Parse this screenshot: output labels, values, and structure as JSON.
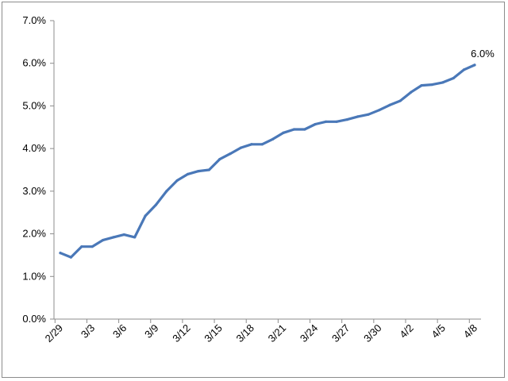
{
  "chart_data": {
    "type": "line",
    "title": "",
    "xlabel": "",
    "ylabel": "",
    "ylim": [
      0,
      7
    ],
    "y_ticks": [
      "0.0%",
      "1.0%",
      "2.0%",
      "3.0%",
      "4.0%",
      "5.0%",
      "6.0%",
      "7.0%"
    ],
    "y_tick_values": [
      0,
      1,
      2,
      3,
      4,
      5,
      6,
      7
    ],
    "x": [
      "2/29",
      "3/1",
      "3/2",
      "3/3",
      "3/4",
      "3/5",
      "3/6",
      "3/7",
      "3/8",
      "3/9",
      "3/10",
      "3/11",
      "3/12",
      "3/13",
      "3/14",
      "3/15",
      "3/16",
      "3/17",
      "3/18",
      "3/19",
      "3/20",
      "3/21",
      "3/22",
      "3/23",
      "3/24",
      "3/25",
      "3/26",
      "3/27",
      "3/28",
      "3/29",
      "3/30",
      "3/31",
      "4/1",
      "4/2",
      "4/3",
      "4/4",
      "4/5",
      "4/6",
      "4/7",
      "4/8"
    ],
    "x_tick_labels": [
      "2/29",
      "3/3",
      "3/6",
      "3/9",
      "3/12",
      "3/15",
      "3/18",
      "3/21",
      "3/24",
      "3/27",
      "3/30",
      "4/2",
      "4/5",
      "4/8"
    ],
    "grid": false,
    "legend": "none",
    "series": [
      {
        "values": [
          1.55,
          1.45,
          1.7,
          1.7,
          1.85,
          1.92,
          1.98,
          1.92,
          2.42,
          2.68,
          3.0,
          3.25,
          3.4,
          3.47,
          3.5,
          3.75,
          3.88,
          4.02,
          4.1,
          4.1,
          4.22,
          4.37,
          4.45,
          4.45,
          4.57,
          4.63,
          4.63,
          4.68,
          4.75,
          4.8,
          4.9,
          5.02,
          5.12,
          5.32,
          5.48,
          5.5,
          5.55,
          5.65,
          5.85,
          5.96
        ],
        "color": "#4a78b8"
      }
    ],
    "data_labels": [
      {
        "text": "6.0%",
        "index": 39
      }
    ]
  }
}
